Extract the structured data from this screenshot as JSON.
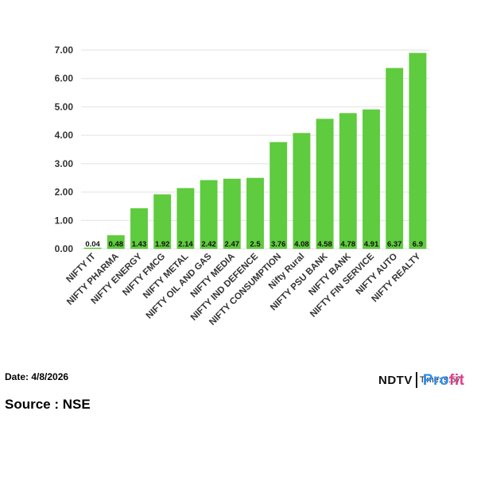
{
  "chart_data": {
    "type": "bar",
    "categories": [
      "NIFTY IT",
      "NIFTY PHARMA",
      "NIFTY ENERGY",
      "NIFTY FMCG",
      "NIFTY METAL",
      "NIFTY OIL AND GAS",
      "NIFTY MEDIA",
      "NIFTY IND DEFENCE",
      "NIFTY CONSUMPTION",
      "Nifty Rural",
      "NIFTY PSU BANK",
      "NIFTY BANK",
      "NIFTY FIN SERVICE",
      "NIFTY AUTO",
      "NIFTY REALTY"
    ],
    "values": [
      0.04,
      0.48,
      1.43,
      1.92,
      2.14,
      2.42,
      2.47,
      2.5,
      3.76,
      4.08,
      4.58,
      4.78,
      4.91,
      6.37,
      6.9
    ],
    "data_labels": [
      "0.04",
      "0.48",
      "1.43",
      "1.92",
      "2.14",
      "2.42",
      "2.47",
      "2.5",
      "3.76",
      "4.08",
      "4.58",
      "4.78",
      "4.91",
      "6.37",
      "6.9"
    ],
    "yticks": [
      "0.00",
      "1.00",
      "2.00",
      "3.00",
      "4.00",
      "5.00",
      "6.00",
      "7.00"
    ],
    "ylim": [
      0,
      7
    ],
    "grid": true,
    "bar_color": "#5fcb3e",
    "gridline_color": "#e2e2e2"
  },
  "footer": {
    "date": "Date: 4/8/2026",
    "source": "Source : NSE"
  },
  "brand": {
    "ndtv": "NDTV",
    "time_text": "Time: 9:57",
    "profit_main": "Pro",
    "profit_accent": "fit"
  }
}
